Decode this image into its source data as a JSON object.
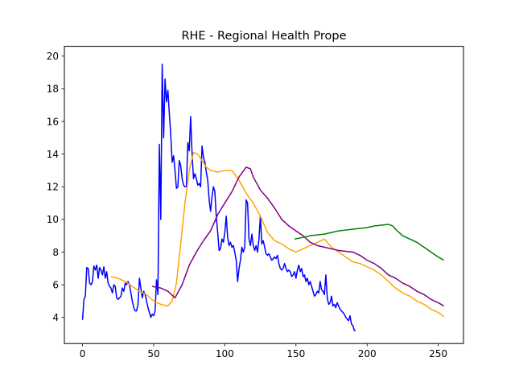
{
  "chart_data": {
    "type": "line",
    "title": "RHE - Regional Health Prope",
    "xlabel": "",
    "ylabel": "",
    "xlim": [
      -12.75,
      267.75
    ],
    "ylim": [
      2.4,
      20.6
    ],
    "x_ticks": [
      0,
      50,
      100,
      150,
      200,
      250
    ],
    "y_ticks": [
      4,
      6,
      8,
      10,
      12,
      14,
      16,
      18,
      20
    ],
    "grid": false,
    "legend": "none",
    "series": [
      {
        "color": "#0000ff",
        "points": [
          [
            0,
            3.85
          ],
          [
            1,
            5.1
          ],
          [
            2,
            5.3
          ],
          [
            3,
            7.05
          ],
          [
            4,
            7.0
          ],
          [
            5,
            6.1
          ],
          [
            6,
            6.0
          ],
          [
            7,
            6.2
          ],
          [
            8,
            7.15
          ],
          [
            9,
            6.9
          ],
          [
            10,
            7.2
          ],
          [
            11,
            6.4
          ],
          [
            12,
            7.05
          ],
          [
            13,
            6.9
          ],
          [
            14,
            6.6
          ],
          [
            15,
            7.1
          ],
          [
            16,
            6.4
          ],
          [
            17,
            6.8
          ],
          [
            18,
            6.1
          ],
          [
            19,
            5.9
          ],
          [
            20,
            5.8
          ],
          [
            21,
            5.5
          ],
          [
            22,
            6.0
          ],
          [
            23,
            5.9
          ],
          [
            24,
            5.2
          ],
          [
            25,
            5.1
          ],
          [
            26,
            5.2
          ],
          [
            27,
            5.3
          ],
          [
            28,
            5.8
          ],
          [
            29,
            5.6
          ],
          [
            30,
            6.1
          ],
          [
            31,
            6.0
          ],
          [
            32,
            6.2
          ],
          [
            33,
            6.0
          ],
          [
            34,
            5.5
          ],
          [
            35,
            5.0
          ],
          [
            36,
            4.6
          ],
          [
            37,
            4.4
          ],
          [
            38,
            4.4
          ],
          [
            39,
            4.8
          ],
          [
            40,
            6.4
          ],
          [
            41,
            5.8
          ],
          [
            42,
            5.2
          ],
          [
            43,
            5.6
          ],
          [
            44,
            5.4
          ],
          [
            45,
            5.0
          ],
          [
            46,
            4.6
          ],
          [
            47,
            4.3
          ],
          [
            48,
            4.0
          ],
          [
            49,
            4.2
          ],
          [
            50,
            4.1
          ],
          [
            51,
            4.4
          ],
          [
            52,
            6.3
          ],
          [
            53,
            5.4
          ],
          [
            54,
            14.6
          ],
          [
            55,
            10.0
          ],
          [
            56,
            19.5
          ],
          [
            57,
            15.0
          ],
          [
            58,
            18.6
          ],
          [
            59,
            17.2
          ],
          [
            60,
            17.9
          ],
          [
            61,
            16.5
          ],
          [
            62,
            15.2
          ],
          [
            63,
            13.5
          ],
          [
            64,
            13.9
          ],
          [
            65,
            13.0
          ],
          [
            66,
            11.9
          ],
          [
            67,
            12.0
          ],
          [
            68,
            13.6
          ],
          [
            69,
            13.3
          ],
          [
            70,
            12.5
          ],
          [
            71,
            12.1
          ],
          [
            72,
            12.0
          ],
          [
            73,
            12.0
          ],
          [
            74,
            14.7
          ],
          [
            75,
            14.2
          ],
          [
            76,
            16.3
          ],
          [
            77,
            14.0
          ],
          [
            78,
            12.5
          ],
          [
            79,
            12.8
          ],
          [
            80,
            12.5
          ],
          [
            81,
            12.1
          ],
          [
            82,
            12.2
          ],
          [
            83,
            12.0
          ],
          [
            84,
            14.5
          ],
          [
            85,
            13.8
          ],
          [
            86,
            13.5
          ],
          [
            87,
            12.9
          ],
          [
            88,
            12.4
          ],
          [
            89,
            11.2
          ],
          [
            90,
            10.5
          ],
          [
            91,
            11.4
          ],
          [
            92,
            12.0
          ],
          [
            93,
            11.7
          ],
          [
            94,
            10.2
          ],
          [
            95,
            9.2
          ],
          [
            96,
            8.1
          ],
          [
            97,
            8.2
          ],
          [
            98,
            8.8
          ],
          [
            99,
            8.6
          ],
          [
            100,
            9.2
          ],
          [
            101,
            10.2
          ],
          [
            102,
            8.9
          ],
          [
            103,
            8.4
          ],
          [
            104,
            8.6
          ],
          [
            105,
            8.3
          ],
          [
            106,
            8.4
          ],
          [
            107,
            8.0
          ],
          [
            108,
            7.5
          ],
          [
            109,
            6.2
          ],
          [
            110,
            7.0
          ],
          [
            111,
            7.5
          ],
          [
            112,
            8.3
          ],
          [
            113,
            8.0
          ],
          [
            114,
            8.3
          ],
          [
            115,
            11.2
          ],
          [
            116,
            11.0
          ],
          [
            117,
            8.8
          ],
          [
            118,
            8.4
          ],
          [
            119,
            9.1
          ],
          [
            120,
            8.4
          ],
          [
            121,
            8.1
          ],
          [
            122,
            8.4
          ],
          [
            123,
            8.0
          ],
          [
            124,
            8.8
          ],
          [
            125,
            10.2
          ],
          [
            126,
            8.5
          ],
          [
            127,
            8.7
          ],
          [
            128,
            8.3
          ],
          [
            129,
            7.9
          ],
          [
            130,
            7.8
          ],
          [
            131,
            7.9
          ],
          [
            132,
            7.7
          ],
          [
            133,
            7.5
          ],
          [
            134,
            7.6
          ],
          [
            135,
            7.7
          ],
          [
            136,
            7.6
          ],
          [
            137,
            7.8
          ],
          [
            138,
            7.3
          ],
          [
            139,
            7.0
          ],
          [
            140,
            6.9
          ],
          [
            141,
            7.0
          ],
          [
            142,
            7.3
          ],
          [
            143,
            7.0
          ],
          [
            144,
            6.8
          ],
          [
            145,
            6.9
          ],
          [
            146,
            6.8
          ],
          [
            147,
            6.5
          ],
          [
            148,
            6.6
          ],
          [
            149,
            6.8
          ],
          [
            150,
            6.4
          ],
          [
            151,
            6.9
          ],
          [
            152,
            7.2
          ],
          [
            153,
            6.8
          ],
          [
            154,
            7.0
          ],
          [
            155,
            6.5
          ],
          [
            156,
            6.6
          ],
          [
            157,
            6.2
          ],
          [
            158,
            6.4
          ],
          [
            159,
            6.0
          ],
          [
            160,
            6.2
          ],
          [
            161,
            5.9
          ],
          [
            162,
            5.6
          ],
          [
            163,
            5.3
          ],
          [
            164,
            5.4
          ],
          [
            165,
            5.6
          ],
          [
            166,
            5.5
          ],
          [
            167,
            6.2
          ],
          [
            168,
            5.7
          ],
          [
            169,
            5.6
          ],
          [
            170,
            5.4
          ],
          [
            171,
            6.6
          ],
          [
            172,
            5.2
          ],
          [
            173,
            4.8
          ],
          [
            174,
            4.9
          ],
          [
            175,
            5.3
          ],
          [
            176,
            4.7
          ],
          [
            177,
            4.8
          ],
          [
            178,
            4.6
          ],
          [
            179,
            4.9
          ],
          [
            180,
            4.7
          ],
          [
            181,
            4.5
          ],
          [
            182,
            4.4
          ],
          [
            183,
            4.3
          ],
          [
            184,
            4.2
          ],
          [
            185,
            4.0
          ],
          [
            186,
            3.9
          ],
          [
            187,
            3.8
          ],
          [
            188,
            4.1
          ],
          [
            189,
            3.6
          ],
          [
            190,
            3.5
          ],
          [
            191,
            3.2
          ],
          [
            192,
            3.2
          ]
        ]
      },
      {
        "color": "#ffa500",
        "points": [
          [
            20,
            6.5
          ],
          [
            25,
            6.4
          ],
          [
            30,
            6.2
          ],
          [
            35,
            5.9
          ],
          [
            40,
            5.6
          ],
          [
            45,
            5.4
          ],
          [
            50,
            5.0
          ],
          [
            55,
            4.8
          ],
          [
            60,
            4.7
          ],
          [
            63,
            5.0
          ],
          [
            66,
            6.1
          ],
          [
            69,
            8.5
          ],
          [
            72,
            11.0
          ],
          [
            75,
            13.0
          ],
          [
            78,
            14.1
          ],
          [
            81,
            14.0
          ],
          [
            84,
            13.6
          ],
          [
            87,
            13.2
          ],
          [
            90,
            13.0
          ],
          [
            95,
            12.9
          ],
          [
            100,
            13.0
          ],
          [
            105,
            13.0
          ],
          [
            110,
            12.4
          ],
          [
            115,
            11.6
          ],
          [
            120,
            11.0
          ],
          [
            125,
            10.2
          ],
          [
            130,
            9.2
          ],
          [
            135,
            8.7
          ],
          [
            140,
            8.5
          ],
          [
            145,
            8.2
          ],
          [
            150,
            8.0
          ],
          [
            155,
            8.2
          ],
          [
            160,
            8.4
          ],
          [
            165,
            8.6
          ],
          [
            170,
            8.8
          ],
          [
            175,
            8.3
          ],
          [
            180,
            8.0
          ],
          [
            185,
            7.7
          ],
          [
            190,
            7.4
          ],
          [
            195,
            7.3
          ],
          [
            200,
            7.1
          ],
          [
            205,
            6.9
          ],
          [
            210,
            6.6
          ],
          [
            215,
            6.2
          ],
          [
            220,
            5.8
          ],
          [
            225,
            5.5
          ],
          [
            230,
            5.3
          ],
          [
            235,
            5.0
          ],
          [
            240,
            4.8
          ],
          [
            245,
            4.5
          ],
          [
            250,
            4.3
          ],
          [
            254,
            4.05
          ]
        ]
      },
      {
        "color": "#800080",
        "points": [
          [
            49,
            5.9
          ],
          [
            55,
            5.8
          ],
          [
            60,
            5.6
          ],
          [
            65,
            5.2
          ],
          [
            70,
            6.0
          ],
          [
            75,
            7.2
          ],
          [
            80,
            8.0
          ],
          [
            85,
            8.7
          ],
          [
            90,
            9.3
          ],
          [
            95,
            10.3
          ],
          [
            100,
            11.0
          ],
          [
            105,
            11.7
          ],
          [
            110,
            12.6
          ],
          [
            115,
            13.2
          ],
          [
            118,
            13.1
          ],
          [
            120,
            12.6
          ],
          [
            125,
            11.8
          ],
          [
            130,
            11.3
          ],
          [
            135,
            10.7
          ],
          [
            140,
            10.0
          ],
          [
            145,
            9.6
          ],
          [
            150,
            9.3
          ],
          [
            155,
            9.0
          ],
          [
            160,
            8.6
          ],
          [
            165,
            8.4
          ],
          [
            170,
            8.3
          ],
          [
            175,
            8.2
          ],
          [
            180,
            8.1
          ],
          [
            185,
            8.05
          ],
          [
            190,
            8.0
          ],
          [
            195,
            7.8
          ],
          [
            200,
            7.5
          ],
          [
            205,
            7.3
          ],
          [
            210,
            7.0
          ],
          [
            215,
            6.6
          ],
          [
            220,
            6.4
          ],
          [
            225,
            6.1
          ],
          [
            230,
            5.9
          ],
          [
            235,
            5.6
          ],
          [
            240,
            5.4
          ],
          [
            245,
            5.1
          ],
          [
            250,
            4.9
          ],
          [
            254,
            4.7
          ]
        ]
      },
      {
        "color": "#008000",
        "points": [
          [
            149,
            8.8
          ],
          [
            155,
            8.9
          ],
          [
            160,
            9.0
          ],
          [
            165,
            9.05
          ],
          [
            170,
            9.1
          ],
          [
            175,
            9.2
          ],
          [
            180,
            9.3
          ],
          [
            185,
            9.35
          ],
          [
            190,
            9.4
          ],
          [
            195,
            9.45
          ],
          [
            200,
            9.5
          ],
          [
            205,
            9.6
          ],
          [
            210,
            9.65
          ],
          [
            215,
            9.7
          ],
          [
            218,
            9.6
          ],
          [
            220,
            9.4
          ],
          [
            225,
            9.0
          ],
          [
            230,
            8.8
          ],
          [
            235,
            8.6
          ],
          [
            240,
            8.3
          ],
          [
            245,
            8.0
          ],
          [
            250,
            7.7
          ],
          [
            254,
            7.5
          ]
        ]
      }
    ]
  }
}
